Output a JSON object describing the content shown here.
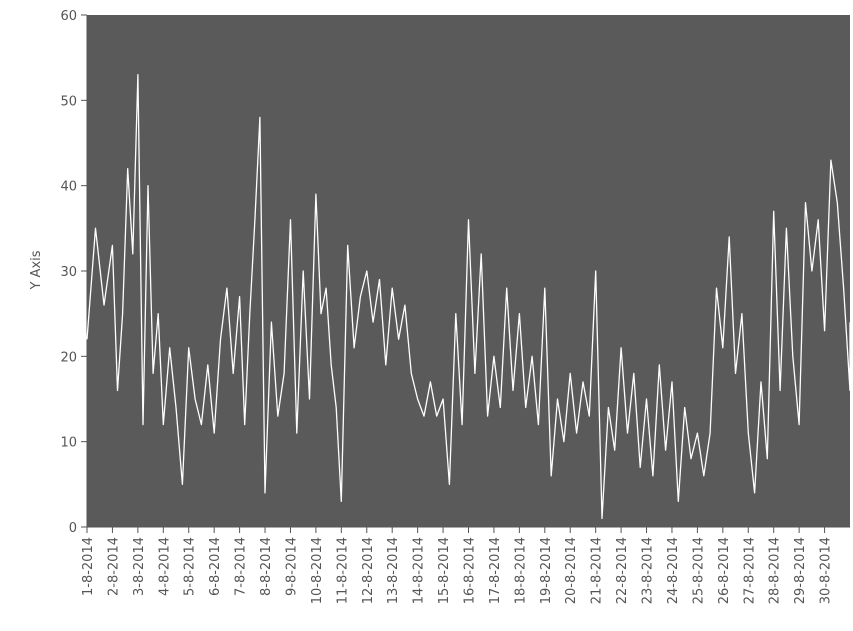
{
  "chart_data": {
    "type": "line",
    "title": "",
    "xlabel": "",
    "ylabel": "Y Axis",
    "ylim": [
      0,
      60
    ],
    "yticks": [
      0,
      10,
      20,
      30,
      40,
      50,
      60
    ],
    "x_tick_labels": [
      "1-8-2014",
      "2-8-2014",
      "3-8-2014",
      "4-8-2014",
      "5-8-2014",
      "6-8-2014",
      "7-8-2014",
      "8-8-2014",
      "9-8-2014",
      "10-8-2014",
      "11-8-2014",
      "12-8-2014",
      "13-8-2014",
      "14-8-2014",
      "15-8-2014",
      "16-8-2014",
      "17-8-2014",
      "18-8-2014",
      "19-8-2014",
      "20-8-2014",
      "21-8-2014",
      "22-8-2014",
      "23-8-2014",
      "24-8-2014",
      "25-8-2014",
      "26-8-2014",
      "27-8-2014",
      "28-8-2014",
      "29-8-2014",
      "30-8-2014"
    ],
    "x_range": [
      "1-8-2014",
      "31-8-2014"
    ],
    "grid": false,
    "colors": {
      "plot_background": "#5a5a5a",
      "line": "#ffffff",
      "axis": "#555555"
    },
    "series": [
      {
        "points": [
          [
            "1-8-2014",
            22
          ],
          [
            "1-8-2014",
            35
          ],
          [
            "1-8-2014",
            26
          ],
          [
            "2-8-2014",
            33
          ],
          [
            "2-8-2014",
            16
          ],
          [
            "2-8-2014",
            25
          ],
          [
            "2-8-2014",
            42
          ],
          [
            "2-8-2014",
            32
          ],
          [
            "3-8-2014",
            53
          ],
          [
            "3-8-2014",
            12
          ],
          [
            "3-8-2014",
            40
          ],
          [
            "3-8-2014",
            18
          ],
          [
            "3-8-2014",
            25
          ],
          [
            "4-8-2014",
            12
          ],
          [
            "4-8-2014",
            21
          ],
          [
            "4-8-2014",
            14
          ],
          [
            "4-8-2014",
            5
          ],
          [
            "5-8-2014",
            21
          ],
          [
            "5-8-2014",
            15
          ],
          [
            "5-8-2014",
            12
          ],
          [
            "5-8-2014",
            19
          ],
          [
            "6-8-2014",
            11
          ],
          [
            "6-8-2014",
            22
          ],
          [
            "6-8-2014",
            28
          ],
          [
            "6-8-2014",
            18
          ],
          [
            "7-8-2014",
            27
          ],
          [
            "7-8-2014",
            12
          ],
          [
            "7-8-2014",
            25
          ],
          [
            "7-8-2014",
            36
          ],
          [
            "7-8-2014",
            48
          ],
          [
            "8-8-2014",
            4
          ],
          [
            "8-8-2014",
            24
          ],
          [
            "8-8-2014",
            13
          ],
          [
            "8-8-2014",
            18
          ],
          [
            "9-8-2014",
            36
          ],
          [
            "9-8-2014",
            11
          ],
          [
            "9-8-2014",
            30
          ],
          [
            "9-8-2014",
            15
          ],
          [
            "10-8-2014",
            39
          ],
          [
            "10-8-2014",
            25
          ],
          [
            "10-8-2014",
            28
          ],
          [
            "10-8-2014",
            19
          ],
          [
            "10-8-2014",
            14
          ],
          [
            "11-8-2014",
            3
          ],
          [
            "11-8-2014",
            33
          ],
          [
            "11-8-2014",
            21
          ],
          [
            "11-8-2014",
            27
          ],
          [
            "12-8-2014",
            30
          ],
          [
            "12-8-2014",
            24
          ],
          [
            "12-8-2014",
            29
          ],
          [
            "12-8-2014",
            19
          ],
          [
            "13-8-2014",
            28
          ],
          [
            "13-8-2014",
            22
          ],
          [
            "13-8-2014",
            26
          ],
          [
            "13-8-2014",
            18
          ],
          [
            "14-8-2014",
            15
          ],
          [
            "14-8-2014",
            13
          ],
          [
            "14-8-2014",
            17
          ],
          [
            "14-8-2014",
            13
          ],
          [
            "15-8-2014",
            15
          ],
          [
            "15-8-2014",
            5
          ],
          [
            "15-8-2014",
            25
          ],
          [
            "15-8-2014",
            12
          ],
          [
            "16-8-2014",
            36
          ],
          [
            "16-8-2014",
            18
          ],
          [
            "16-8-2014",
            32
          ],
          [
            "16-8-2014",
            13
          ],
          [
            "17-8-2014",
            20
          ],
          [
            "17-8-2014",
            14
          ],
          [
            "17-8-2014",
            28
          ],
          [
            "17-8-2014",
            16
          ],
          [
            "18-8-2014",
            25
          ],
          [
            "18-8-2014",
            14
          ],
          [
            "18-8-2014",
            20
          ],
          [
            "18-8-2014",
            12
          ],
          [
            "19-8-2014",
            28
          ],
          [
            "19-8-2014",
            6
          ],
          [
            "19-8-2014",
            15
          ],
          [
            "19-8-2014",
            10
          ],
          [
            "20-8-2014",
            18
          ],
          [
            "20-8-2014",
            11
          ],
          [
            "20-8-2014",
            17
          ],
          [
            "20-8-2014",
            13
          ],
          [
            "21-8-2014",
            30
          ],
          [
            "21-8-2014",
            1
          ],
          [
            "21-8-2014",
            14
          ],
          [
            "21-8-2014",
            9
          ],
          [
            "22-8-2014",
            21
          ],
          [
            "22-8-2014",
            11
          ],
          [
            "22-8-2014",
            18
          ],
          [
            "22-8-2014",
            7
          ],
          [
            "23-8-2014",
            15
          ],
          [
            "23-8-2014",
            6
          ],
          [
            "23-8-2014",
            19
          ],
          [
            "23-8-2014",
            9
          ],
          [
            "24-8-2014",
            17
          ],
          [
            "24-8-2014",
            3
          ],
          [
            "24-8-2014",
            14
          ],
          [
            "24-8-2014",
            8
          ],
          [
            "25-8-2014",
            11
          ],
          [
            "25-8-2014",
            6
          ],
          [
            "25-8-2014",
            11
          ],
          [
            "25-8-2014",
            28
          ],
          [
            "26-8-2014",
            21
          ],
          [
            "26-8-2014",
            34
          ],
          [
            "26-8-2014",
            18
          ],
          [
            "26-8-2014",
            25
          ],
          [
            "27-8-2014",
            11
          ],
          [
            "27-8-2014",
            4
          ],
          [
            "27-8-2014",
            17
          ],
          [
            "27-8-2014",
            8
          ],
          [
            "28-8-2014",
            37
          ],
          [
            "28-8-2014",
            16
          ],
          [
            "28-8-2014",
            35
          ],
          [
            "28-8-2014",
            20
          ],
          [
            "29-8-2014",
            12
          ],
          [
            "29-8-2014",
            38
          ],
          [
            "29-8-2014",
            30
          ],
          [
            "29-8-2014",
            36
          ],
          [
            "30-8-2014",
            23
          ],
          [
            "30-8-2014",
            43
          ],
          [
            "30-8-2014",
            38
          ],
          [
            "30-8-2014",
            28
          ],
          [
            "31-8-2014",
            16
          ],
          [
            "31-8-2014",
            24
          ]
        ]
      }
    ]
  }
}
